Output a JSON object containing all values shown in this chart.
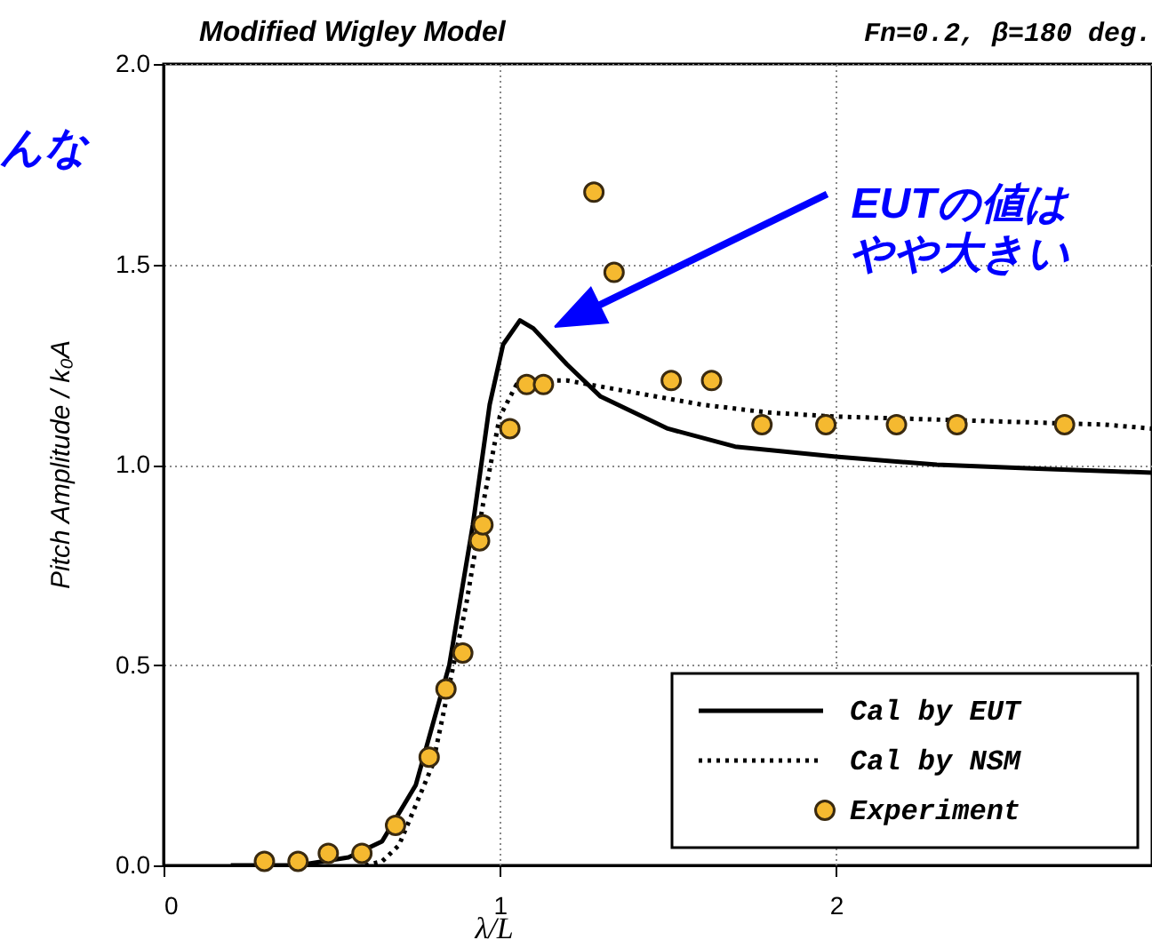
{
  "chart_data": {
    "type": "line",
    "title": "Modified Wigley Model",
    "xlabel": "λ/L",
    "ylabel": "Pitch Amplitude / k₀A",
    "annotations": [
      "Fn=0.2, β=180 deg.",
      "んな",
      "EUTの値はやや大きい"
    ],
    "xlim": [
      0,
      2.94
    ],
    "xticks": [
      0,
      1,
      2
    ],
    "ylim": [
      0,
      2.0
    ],
    "yticks": [
      {
        "value": 0,
        "label": "0.0"
      },
      0.5,
      {
        "value": 1,
        "label": "1.0"
      },
      1.5,
      {
        "value": 2,
        "label": "2.0"
      }
    ],
    "grid": true,
    "legend": "bottom right",
    "series": [
      {
        "name": "Cal by EUT",
        "line_style": "solid",
        "color": "#000000",
        "x": [
          0.2,
          0.4,
          0.55,
          0.65,
          0.75,
          0.85,
          0.92,
          0.97,
          1.01,
          1.06,
          1.1,
          1.2,
          1.3,
          1.5,
          1.7,
          2.0,
          2.3,
          2.6,
          2.94
        ],
        "values": [
          0.0,
          0.0,
          0.02,
          0.06,
          0.2,
          0.5,
          0.85,
          1.15,
          1.3,
          1.36,
          1.34,
          1.25,
          1.17,
          1.09,
          1.045,
          1.02,
          1.0,
          0.99,
          0.98
        ]
      },
      {
        "name": "Cal by NSM",
        "line_style": "dotted",
        "color": "#000000",
        "x": [
          0.6,
          0.65,
          0.7,
          0.8,
          0.9,
          0.95,
          1.0,
          1.05,
          1.1,
          1.2,
          1.4,
          1.6,
          1.8,
          2.0,
          2.4,
          2.8,
          2.94
        ],
        "values": [
          0.0,
          0.01,
          0.05,
          0.25,
          0.65,
          0.9,
          1.12,
          1.2,
          1.21,
          1.21,
          1.18,
          1.15,
          1.13,
          1.12,
          1.11,
          1.1,
          1.09
        ]
      },
      {
        "name": "Experiment",
        "type": "scatter",
        "marker": "circle",
        "color": "#f5b930",
        "x": [
          0.3,
          0.4,
          0.49,
          0.59,
          0.69,
          0.79,
          0.84,
          0.89,
          0.94,
          0.95,
          1.03,
          1.08,
          1.13,
          1.28,
          1.34,
          1.51,
          1.63,
          1.78,
          1.97,
          2.18,
          2.36,
          2.68
        ],
        "values": [
          0.01,
          0.01,
          0.03,
          0.03,
          0.1,
          0.27,
          0.44,
          0.53,
          0.81,
          0.85,
          1.09,
          1.2,
          1.2,
          1.68,
          1.48,
          1.21,
          1.21,
          1.1,
          1.1,
          1.1,
          1.1,
          1.1
        ]
      }
    ]
  }
}
